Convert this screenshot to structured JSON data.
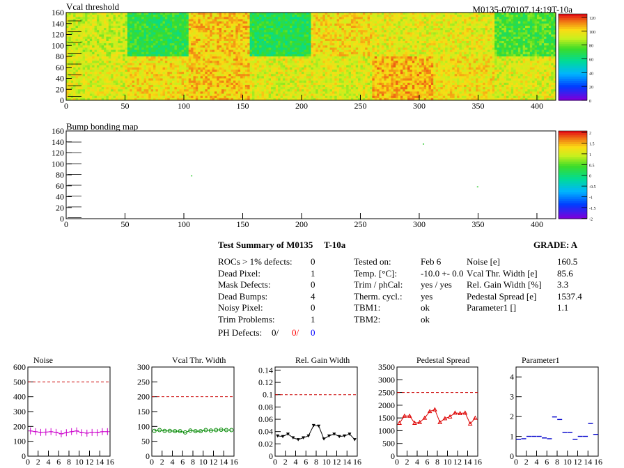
{
  "module_id": "M0135-070107.14:19T-10a",
  "chart_data": [
    {
      "type": "heatmap",
      "title": "Vcal threshold",
      "x_ticks": [
        "0",
        "50",
        "100",
        "150",
        "200",
        "250",
        "300",
        "350",
        "400"
      ],
      "y_ticks": [
        "0",
        "20",
        "40",
        "60",
        "80",
        "100",
        "120",
        "140",
        "160"
      ],
      "xlim": [
        0,
        416
      ],
      "ylim": [
        0,
        160
      ],
      "colorbar_ticks": [
        "0",
        "20",
        "40",
        "60",
        "80",
        "100",
        "120"
      ],
      "colorbar_range": [
        0,
        125
      ],
      "rocs_top_mean": [
        92,
        70,
        104,
        68,
        100,
        96,
        96,
        75
      ],
      "rocs_bottom_mean": [
        95,
        100,
        104,
        95,
        95,
        107,
        99,
        95
      ],
      "colors": {
        "high": "#e0701e",
        "mid": "#f2d21e",
        "low": "#8fe04a"
      }
    },
    {
      "type": "heatmap",
      "title": "Bump bonding map",
      "x_ticks": [
        "0",
        "50",
        "100",
        "150",
        "200",
        "250",
        "300",
        "350",
        "400"
      ],
      "y_ticks": [
        "0",
        "20",
        "40",
        "60",
        "80",
        "100",
        "120",
        "140",
        "160"
      ],
      "xlim": [
        0,
        416
      ],
      "ylim": [
        0,
        160
      ],
      "colorbar_ticks": [
        "2",
        "1.5",
        "1",
        "0.5",
        "0",
        "-0.5",
        "-1",
        "-1.5",
        "-2"
      ],
      "colorbar_range": [
        -2,
        2
      ],
      "points": [
        {
          "x": 106,
          "y": 79
        },
        {
          "x": 303,
          "y": 137
        },
        {
          "x": 349,
          "y": 59
        }
      ]
    },
    {
      "type": "line",
      "title": "Noise",
      "xlim": [
        0,
        16
      ],
      "ylim": [
        0,
        600
      ],
      "y_ticks": [
        "0",
        "100",
        "200",
        "300",
        "400",
        "500",
        "600"
      ],
      "x_ticks": [
        "0",
        "2",
        "4",
        "6",
        "8",
        "10",
        "12",
        "14",
        "16"
      ],
      "ref_line": 500,
      "color": "#cc00cc",
      "marker": "cross",
      "x": [
        0.5,
        1.5,
        2.5,
        3.5,
        4.5,
        5.5,
        6.5,
        7.5,
        8.5,
        9.5,
        10.5,
        11.5,
        12.5,
        13.5,
        14.5,
        15.5
      ],
      "values": [
        170,
        165,
        160,
        162,
        165,
        160,
        150,
        158,
        165,
        170,
        158,
        155,
        160,
        158,
        165,
        165
      ]
    },
    {
      "type": "line",
      "title": "Vcal Thr. Width",
      "xlim": [
        0,
        16
      ],
      "ylim": [
        0,
        300
      ],
      "y_ticks": [
        "0",
        "50",
        "100",
        "150",
        "200",
        "250",
        "300"
      ],
      "x_ticks": [
        "0",
        "2",
        "4",
        "6",
        "8",
        "10",
        "12",
        "14",
        "16"
      ],
      "ref_line": 200,
      "color": "#008800",
      "marker": "circle",
      "x": [
        0.5,
        1.5,
        2.5,
        3.5,
        4.5,
        5.5,
        6.5,
        7.5,
        8.5,
        9.5,
        10.5,
        11.5,
        12.5,
        13.5,
        14.5,
        15.5
      ],
      "values": [
        85,
        88,
        85,
        85,
        84,
        84,
        80,
        86,
        84,
        84,
        88,
        86,
        88,
        89,
        88,
        88
      ]
    },
    {
      "type": "line",
      "title": "Rel. Gain Width",
      "xlim": [
        0,
        16
      ],
      "ylim": [
        0,
        0.145
      ],
      "y_ticks": [
        "0",
        "0.02",
        "0.04",
        "0.06",
        "0.08",
        "0.1",
        "0.12",
        "0.14"
      ],
      "x_ticks": [
        "0",
        "2",
        "4",
        "6",
        "8",
        "10",
        "12",
        "14",
        "16"
      ],
      "ref_line": 0.1,
      "color": "#000000",
      "marker": "triangle-down",
      "x": [
        0.5,
        1.5,
        2.5,
        3.5,
        4.5,
        5.5,
        6.5,
        7.5,
        8.5,
        9.5,
        10.5,
        11.5,
        12.5,
        13.5,
        14.5,
        15.5
      ],
      "values": [
        0.033,
        0.032,
        0.036,
        0.03,
        0.027,
        0.03,
        0.033,
        0.05,
        0.049,
        0.028,
        0.033,
        0.036,
        0.032,
        0.033,
        0.036,
        0.027
      ]
    },
    {
      "type": "line",
      "title": "Pedestal Spread",
      "xlim": [
        0,
        16
      ],
      "ylim": [
        0,
        3500
      ],
      "y_ticks": [
        "0",
        "500",
        "1000",
        "1500",
        "2000",
        "2500",
        "3000",
        "3500"
      ],
      "x_ticks": [
        "0",
        "2",
        "4",
        "6",
        "8",
        "10",
        "12",
        "14",
        "16"
      ],
      "ref_line": 2500,
      "color": "#dd0000",
      "marker": "triangle-up",
      "x": [
        0.5,
        1.5,
        2.5,
        3.5,
        4.5,
        5.5,
        6.5,
        7.5,
        8.5,
        9.5,
        10.5,
        11.5,
        12.5,
        13.5,
        14.5,
        15.5
      ],
      "values": [
        1300,
        1580,
        1580,
        1300,
        1330,
        1500,
        1760,
        1830,
        1330,
        1480,
        1550,
        1700,
        1680,
        1700,
        1270,
        1500
      ]
    },
    {
      "type": "scatter",
      "title": "Parameter1",
      "xlim": [
        0,
        16
      ],
      "ylim": [
        0,
        4.5
      ],
      "y_ticks": [
        "0",
        "1",
        "2",
        "3",
        "4"
      ],
      "x_ticks": [
        "0",
        "2",
        "4",
        "6",
        "8",
        "10",
        "12",
        "14",
        "16"
      ],
      "color": "#0000cc",
      "marker": "hbar",
      "x": [
        0.5,
        1.5,
        2.5,
        3.5,
        4.5,
        5.5,
        6.5,
        7.5,
        8.5,
        9.5,
        10.5,
        11.5,
        12.5,
        13.5,
        14.5,
        15.5
      ],
      "values": [
        0.85,
        0.88,
        1.0,
        1.0,
        1.0,
        0.92,
        0.88,
        1.98,
        1.85,
        1.2,
        1.2,
        0.85,
        1.0,
        1.0,
        1.65,
        1.1
      ]
    }
  ],
  "summary": {
    "title": "Test Summary of M0135",
    "run_label": "T-10a",
    "grade_label": "GRADE:  A",
    "left_rows": [
      {
        "label": "ROCs > 1% defects:",
        "value": "0"
      },
      {
        "label": "Dead Pixel:",
        "value": "1"
      },
      {
        "label": "Mask Defects:",
        "value": "0"
      },
      {
        "label": "Dead Bumps:",
        "value": "4"
      },
      {
        "label": "Noisy Pixel:",
        "value": "0"
      },
      {
        "label": "Trim Problems:",
        "value": "1"
      }
    ],
    "ph_defects": {
      "label": "PH Defects:",
      "v1": "0/",
      "v2": "0/",
      "v3": "0",
      "c2": "#ff0000",
      "c3": "#0000ff"
    },
    "mid_rows": [
      {
        "label": "Tested on:",
        "value": "Feb 6"
      },
      {
        "label": "Temp. [°C]:",
        "value": "-10.0 +- 0.0"
      },
      {
        "label": "Trim / phCal:",
        "value": "yes / yes"
      },
      {
        "label": "Therm. cycl.:",
        "value": "yes"
      },
      {
        "label": "TBM1:",
        "value": "ok"
      },
      {
        "label": "TBM2:",
        "value": "ok"
      }
    ],
    "right_rows": [
      {
        "label": "Noise [e]",
        "value": "160.5"
      },
      {
        "label": "Vcal Thr. Width [e]",
        "value": "85.6"
      },
      {
        "label": "Rel. Gain Width [%]",
        "value": "3.3"
      },
      {
        "label": "Pedestal Spread [e]",
        "value": "1537.4"
      },
      {
        "label": "Parameter1 []",
        "value": "1.1"
      }
    ]
  }
}
